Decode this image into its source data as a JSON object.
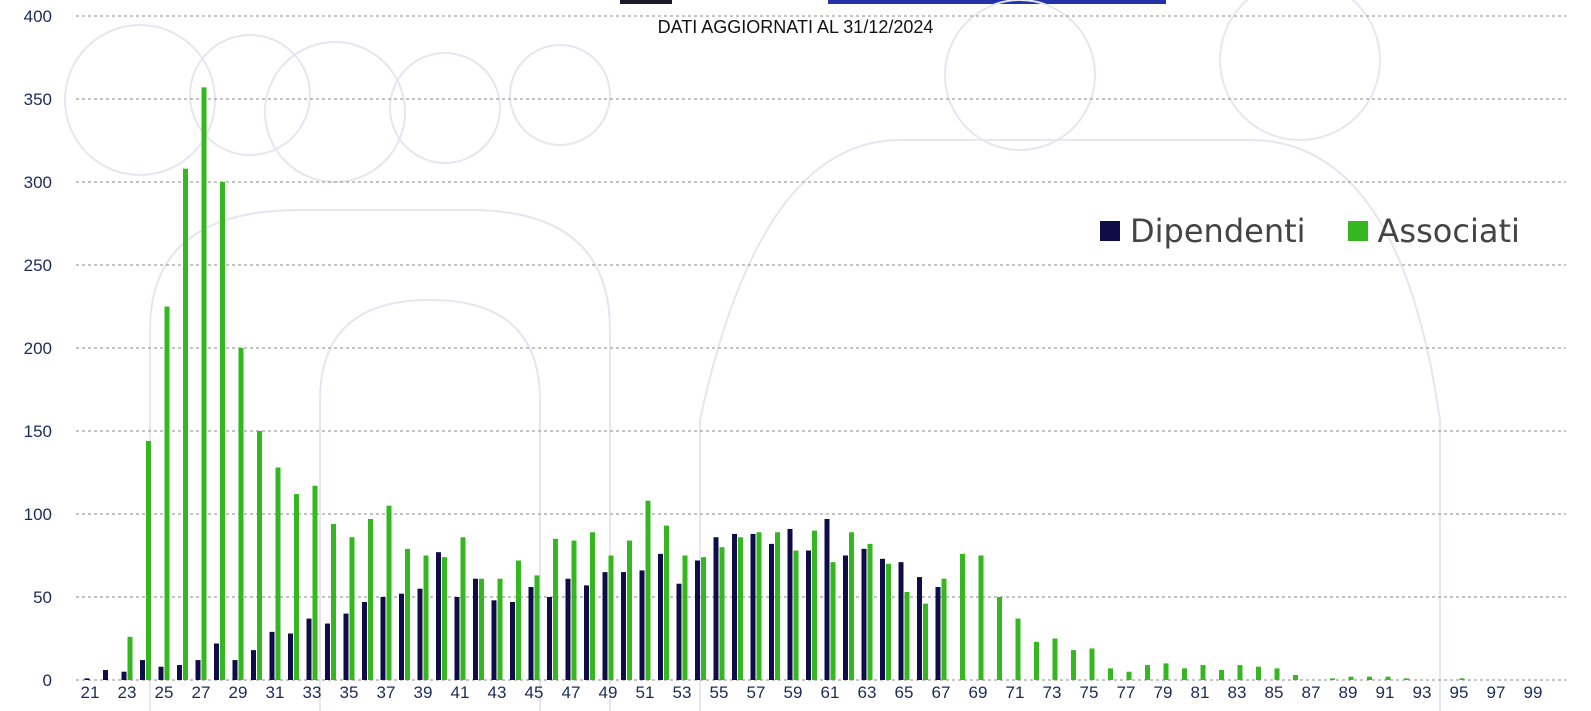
{
  "subtitle": "DATI AGGIORNATI AL 31/12/2024",
  "colors": {
    "dipendenti": "#0f0c47",
    "associati": "#35b81f",
    "grid": "#8a8a8a",
    "axis_text": "#1d2a5a",
    "band_dark": "#1a1a2a",
    "band_blue": "#2233aa"
  },
  "legend": {
    "dipendenti": "Dipendenti",
    "associati": "Associati"
  },
  "chart_data": {
    "type": "bar",
    "categories": [
      21,
      22,
      23,
      24,
      25,
      26,
      27,
      28,
      29,
      30,
      31,
      32,
      33,
      34,
      35,
      36,
      37,
      38,
      39,
      40,
      41,
      42,
      43,
      44,
      45,
      46,
      47,
      48,
      49,
      50,
      51,
      52,
      53,
      54,
      55,
      56,
      57,
      58,
      59,
      60,
      61,
      62,
      63,
      64,
      65,
      66,
      67,
      68,
      69,
      70,
      71,
      72,
      73,
      74,
      75,
      76,
      77,
      78,
      79,
      80,
      81,
      82,
      83,
      84,
      85,
      86,
      87,
      88,
      89,
      90,
      91,
      92,
      93,
      94,
      95,
      96,
      97,
      98,
      99
    ],
    "x_tick_labels": [
      "21",
      "23",
      "25",
      "27",
      "29",
      "31",
      "33",
      "35",
      "37",
      "39",
      "41",
      "43",
      "45",
      "47",
      "49",
      "51",
      "53",
      "55",
      "57",
      "59",
      "61",
      "63",
      "65",
      "67",
      "69",
      "71",
      "73",
      "75",
      "77",
      "79",
      "81",
      "83",
      "85",
      "87",
      "89",
      "91",
      "93",
      "95",
      "97",
      "99"
    ],
    "series": [
      {
        "name": "Dipendenti",
        "values": [
          1,
          6,
          5,
          12,
          8,
          9,
          12,
          22,
          12,
          18,
          29,
          28,
          37,
          34,
          40,
          47,
          50,
          52,
          55,
          77,
          50,
          61,
          48,
          47,
          56,
          50,
          61,
          57,
          65,
          65,
          66,
          76,
          58,
          72,
          86,
          88,
          88,
          82,
          91,
          78,
          97,
          75,
          79,
          73,
          71,
          62,
          56,
          0,
          0,
          0,
          0,
          0,
          0,
          0,
          0,
          0,
          0,
          0,
          0,
          0,
          0,
          0,
          0,
          0,
          0,
          0,
          0,
          0,
          0,
          0,
          0,
          0,
          0,
          0,
          0,
          0,
          0,
          0,
          0
        ]
      },
      {
        "name": "Associati",
        "values": [
          0,
          0,
          26,
          144,
          225,
          308,
          357,
          300,
          200,
          150,
          128,
          112,
          117,
          94,
          86,
          97,
          105,
          79,
          75,
          74,
          86,
          61,
          61,
          72,
          63,
          85,
          84,
          89,
          75,
          84,
          108,
          93,
          75,
          74,
          80,
          86,
          89,
          89,
          78,
          90,
          71,
          89,
          82,
          70,
          53,
          46,
          61,
          76,
          75,
          50,
          37,
          23,
          25,
          18,
          19,
          7,
          5,
          9,
          10,
          7,
          9,
          6,
          9,
          8,
          7,
          3,
          0,
          1,
          2,
          2,
          2,
          1,
          0,
          0,
          1,
          0,
          0,
          0,
          0
        ]
      }
    ],
    "ylim": [
      0,
      400
    ],
    "y_ticks": [
      0,
      50,
      100,
      150,
      200,
      250,
      300,
      350,
      400
    ],
    "grid": true,
    "legend_position": "top-right"
  }
}
